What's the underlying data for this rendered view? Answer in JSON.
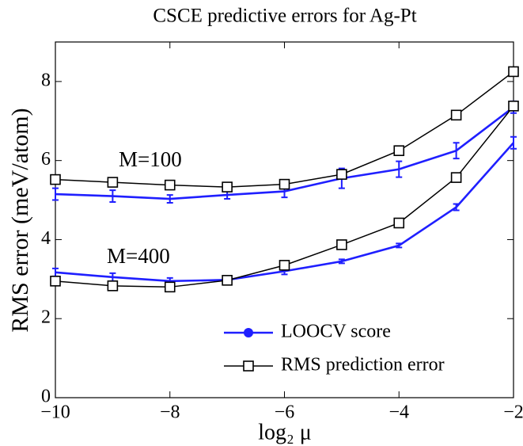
{
  "chart_data": {
    "type": "line",
    "title": "CSCE predictive errors for Ag-Pt",
    "x_label": "log₂ μ",
    "y_label": "RMS error (meV/atom)",
    "x": [
      -10,
      -9,
      -8,
      -7,
      -6,
      -5,
      -4,
      -3,
      -2
    ],
    "xlim": [
      -10,
      -2
    ],
    "xticks": [
      {
        "value": -10,
        "label": "−10"
      },
      {
        "value": -8,
        "label": "−8"
      },
      {
        "value": -6,
        "label": "−6"
      },
      {
        "value": -4,
        "label": "−4"
      },
      {
        "value": -2,
        "label": "−2"
      }
    ],
    "ylim": [
      0,
      9
    ],
    "yticks": [
      0,
      2,
      4,
      6,
      8
    ],
    "annotations": [
      "M=100",
      "M=400"
    ],
    "legend": "lower right",
    "series": [
      {
        "name": "LOOCV score",
        "color": "#1f1fff",
        "marker": "circle",
        "curves": [
          {
            "values": [
              5.15,
              5.1,
              5.03,
              5.13,
              5.22,
              5.55,
              5.78,
              6.25,
              7.35
            ],
            "errors": [
              0.15,
              0.15,
              0.1,
              0.1,
              0.15,
              0.25,
              0.2,
              0.2,
              0.15
            ]
          },
          {
            "values": [
              3.17,
              3.05,
              2.95,
              2.98,
              3.2,
              3.45,
              3.85,
              4.82,
              6.45
            ],
            "errors": [
              0.1,
              0.1,
              0.08,
              0.05,
              0.08,
              0.05,
              0.05,
              0.08,
              0.15
            ]
          }
        ]
      },
      {
        "name": "RMS prediction error",
        "color": "#000000",
        "marker": "square",
        "curves": [
          {
            "values": [
              5.52,
              5.45,
              5.38,
              5.33,
              5.4,
              5.65,
              6.25,
              7.15,
              8.25
            ]
          },
          {
            "values": [
              2.95,
              2.83,
              2.8,
              2.97,
              3.35,
              3.87,
              4.42,
              5.57,
              7.38
            ]
          }
        ]
      }
    ]
  }
}
